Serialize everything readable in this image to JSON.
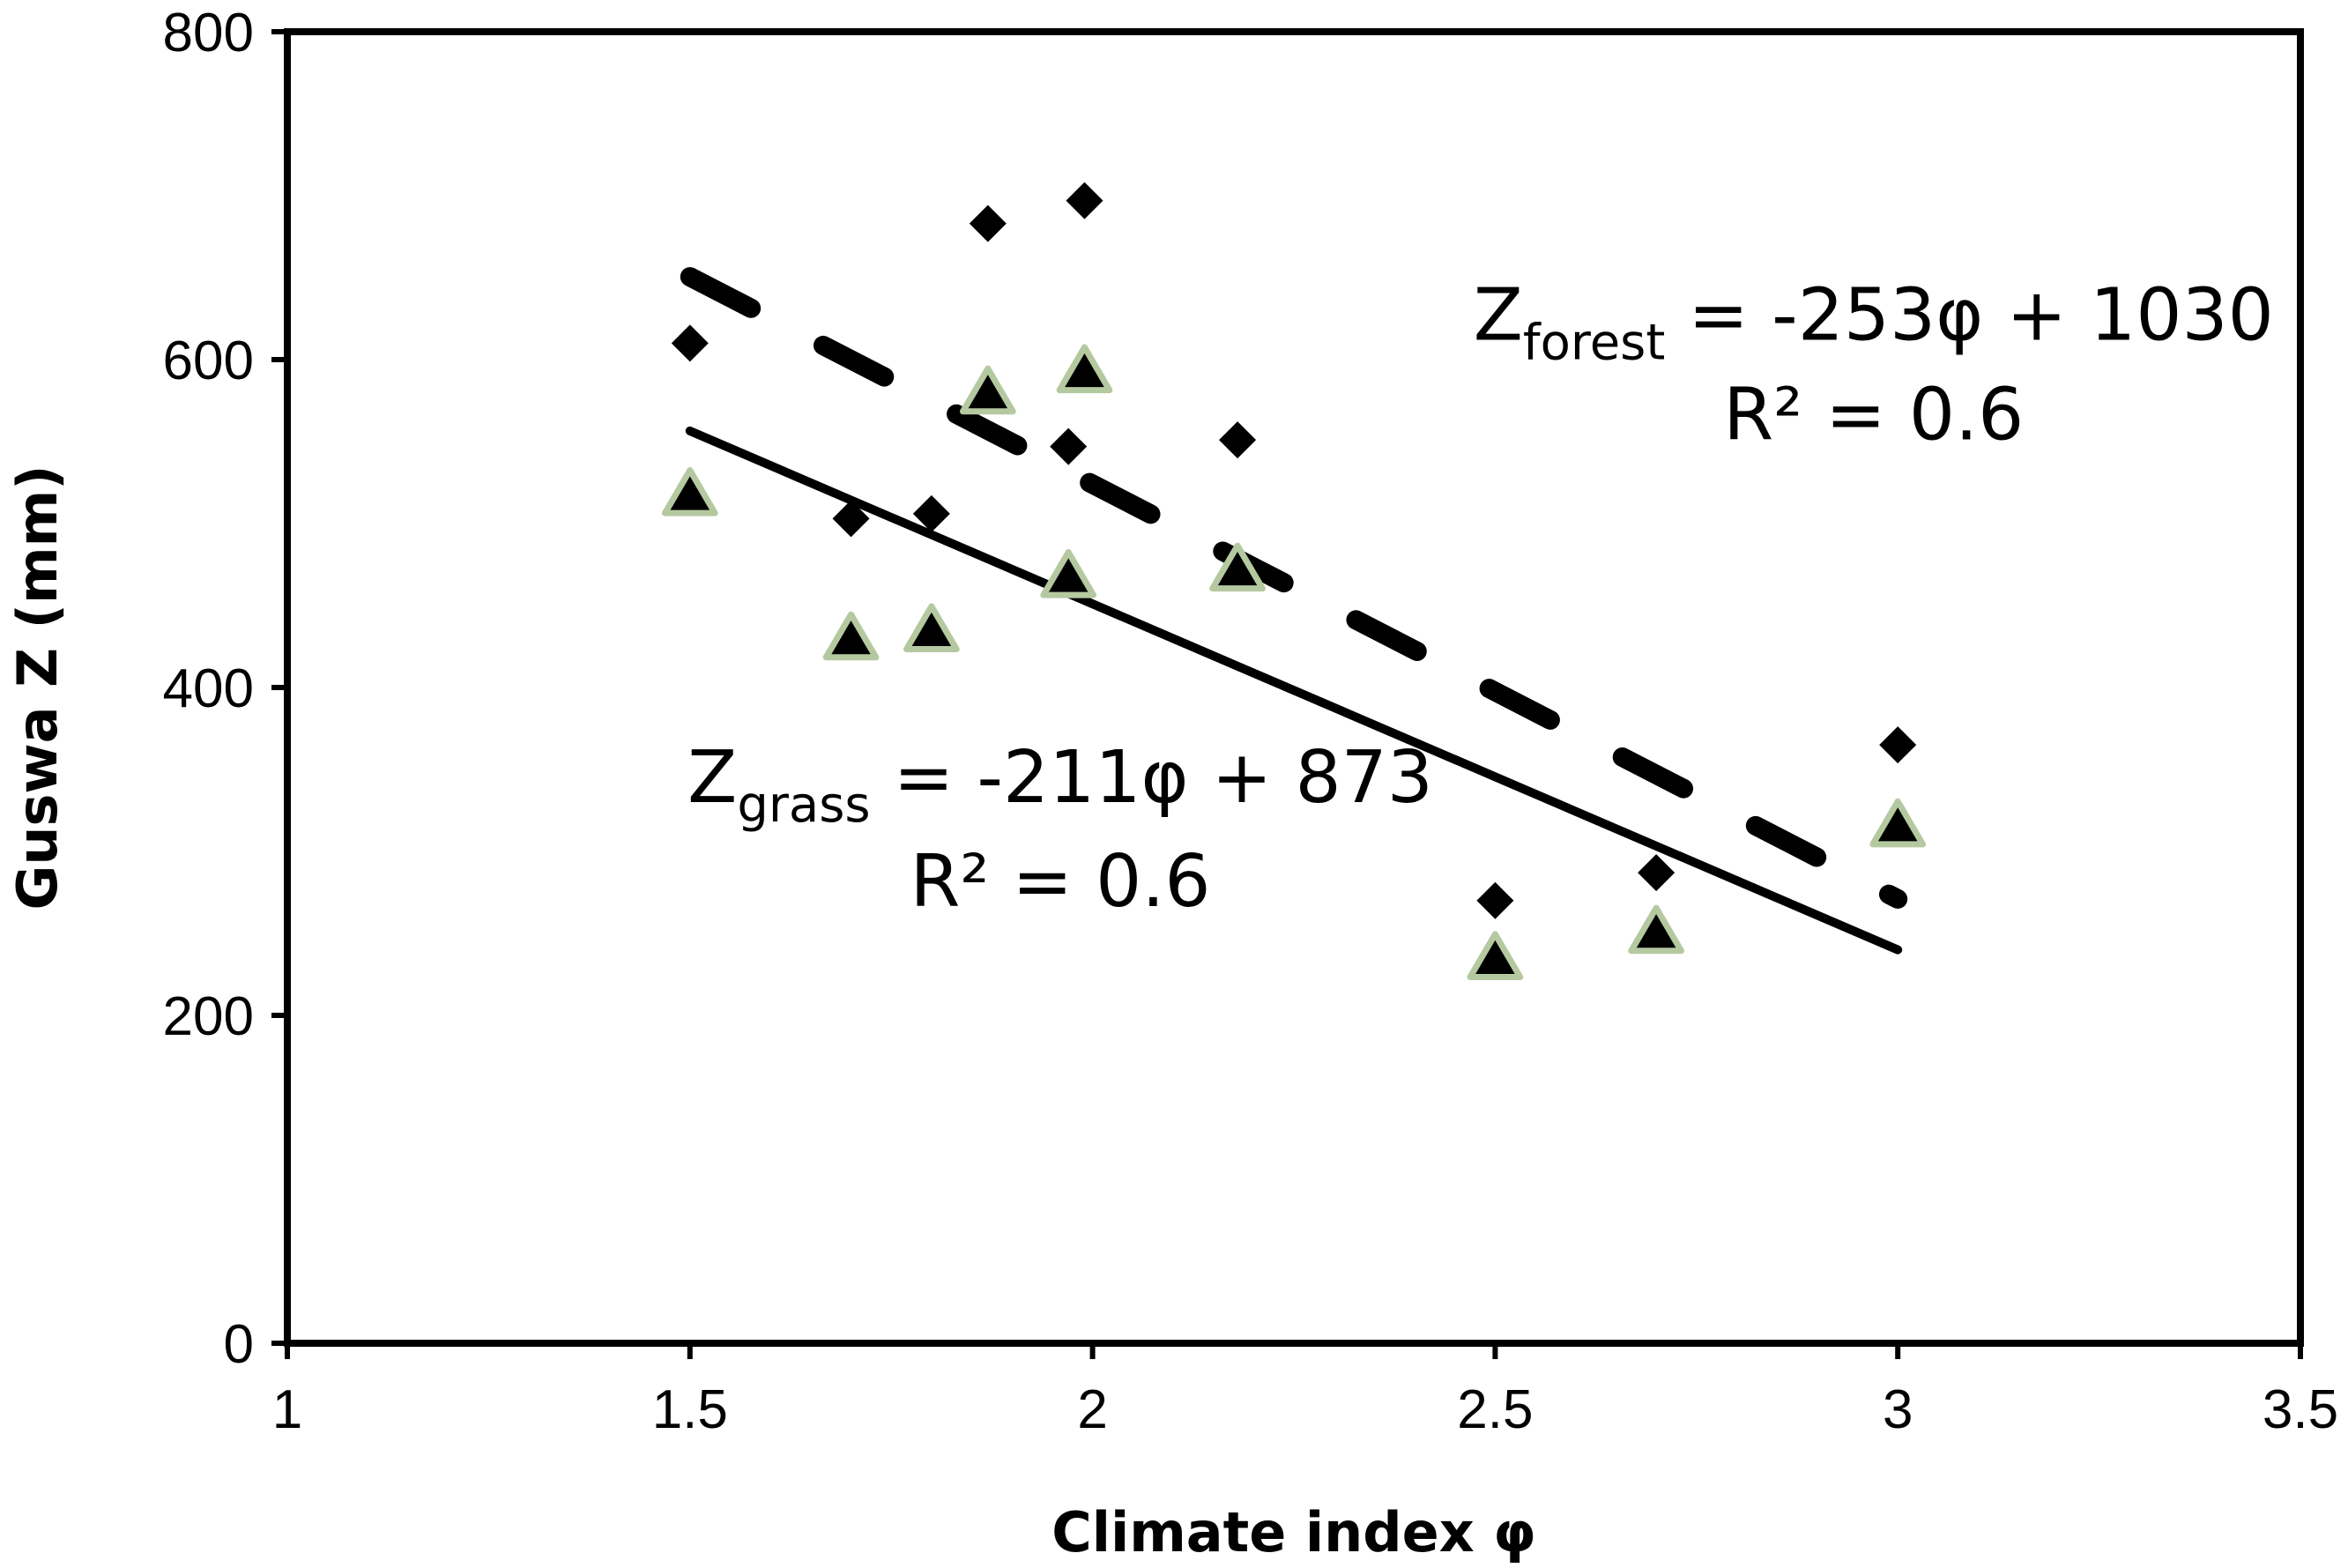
{
  "chart_data": {
    "type": "scatter",
    "title": "",
    "xlabel": "Climate index  φ",
    "ylabel": "Guswa Z  (mm)",
    "xlim": [
      1,
      3.5
    ],
    "ylim": [
      0,
      800
    ],
    "xticks": [
      1,
      1.5,
      2,
      2.5,
      3,
      3.5
    ],
    "yticks": [
      0,
      200,
      400,
      600,
      800
    ],
    "xtick_labels": [
      "1",
      "1.5",
      "2",
      "2.5",
      "3",
      "3.5"
    ],
    "ytick_labels": [
      "0",
      "200",
      "400",
      "600",
      "800"
    ],
    "grid": false,
    "series": [
      {
        "name": "forest",
        "marker": "diamond",
        "color": "#000000",
        "points": [
          {
            "x": 1.5,
            "y": 610
          },
          {
            "x": 1.7,
            "y": 503
          },
          {
            "x": 1.8,
            "y": 506
          },
          {
            "x": 1.87,
            "y": 683
          },
          {
            "x": 1.97,
            "y": 547
          },
          {
            "x": 1.99,
            "y": 697
          },
          {
            "x": 2.18,
            "y": 551
          },
          {
            "x": 2.5,
            "y": 270
          },
          {
            "x": 2.7,
            "y": 287
          },
          {
            "x": 3.0,
            "y": 365
          }
        ]
      },
      {
        "name": "grass",
        "marker": "triangle",
        "color": "#000000",
        "edge_color": "#b5c9a1",
        "points": [
          {
            "x": 1.5,
            "y": 518
          },
          {
            "x": 1.7,
            "y": 430
          },
          {
            "x": 1.8,
            "y": 435
          },
          {
            "x": 1.87,
            "y": 580
          },
          {
            "x": 1.97,
            "y": 468
          },
          {
            "x": 1.99,
            "y": 593
          },
          {
            "x": 2.18,
            "y": 472
          },
          {
            "x": 2.5,
            "y": 235
          },
          {
            "x": 2.7,
            "y": 251
          },
          {
            "x": 3.0,
            "y": 316
          }
        ]
      }
    ],
    "trendlines": [
      {
        "name": "forest-fit",
        "style": "dashed",
        "slope": -253,
        "intercept": 1030,
        "x_range": [
          1.5,
          3.0
        ]
      },
      {
        "name": "grass-fit",
        "style": "solid",
        "slope": -211,
        "intercept": 873,
        "x_range": [
          1.5,
          3.0
        ]
      }
    ],
    "annotations": {
      "forest": {
        "z": "Z",
        "sub": "forest",
        "rest": " = -253φ + 1030",
        "r2": "R² = 0.6",
        "anchor_x": 2.97,
        "anchor_y": 612
      },
      "grass": {
        "z": "Z",
        "sub": "grass",
        "rest": " = -211φ + 873",
        "r2": "R² = 0.6",
        "anchor_x": 1.96,
        "anchor_y": 330
      }
    }
  }
}
